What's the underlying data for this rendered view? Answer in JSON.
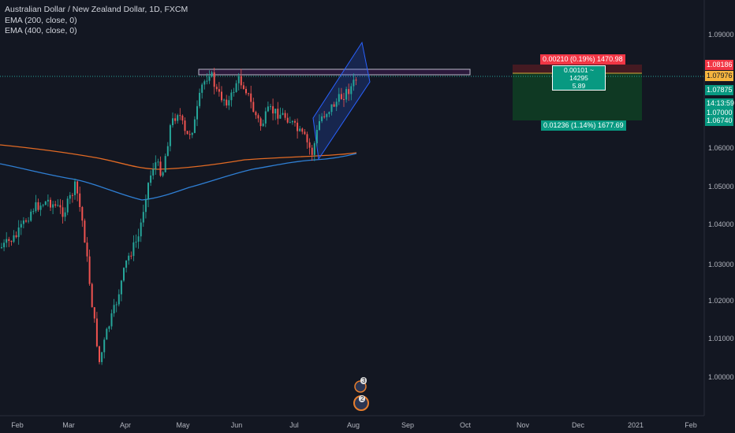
{
  "legend": {
    "title": "Australian Dollar / New Zealand Dollar, 1D, FXCM",
    "ema1": "EMA (200, close, 0)",
    "ema2": "EMA (400, close, 0)"
  },
  "price_axis": [
    "1.09000",
    "1.05000",
    "1.04000",
    "1.03000",
    "1.02000",
    "1.01000",
    "1.00000",
    "1.06000"
  ],
  "price_tags": {
    "stop": "1.08186",
    "current": "1.07976",
    "last": "1.07875",
    "timer": "14:13:59",
    "level": "1.07000",
    "target": "1.06740"
  },
  "time_axis": [
    "Feb",
    "Mar",
    "Apr",
    "May",
    "Jun",
    "Jul",
    "Aug",
    "Sep",
    "Oct",
    "Nov",
    "Dec",
    "2021",
    "Feb"
  ],
  "position": {
    "risk_label": "0.00210 (0.19%) 1470.98",
    "entry_label_1": "0.00101 ~ 14295",
    "entry_label_2": "5.89",
    "reward_label": "0.01236 (1.14%) 1677.69"
  },
  "events": {
    "badge_1": "3",
    "badge_2": "2"
  },
  "colors": {
    "bg": "#131722",
    "up": "#26a69a",
    "down": "#ef5350",
    "ema200": "#2962ff",
    "ema400": "#f57c00",
    "stop": "#f23645",
    "target": "#089981"
  }
}
